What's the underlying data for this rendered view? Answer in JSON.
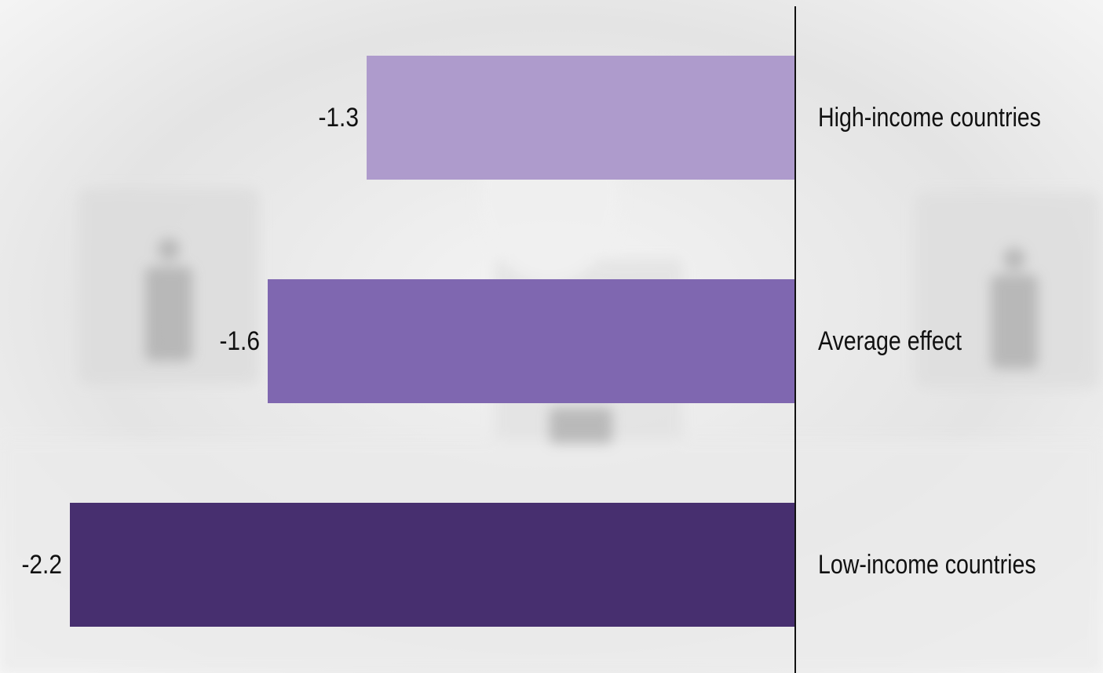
{
  "chart_data": {
    "type": "bar",
    "orientation": "horizontal",
    "categories": [
      "High-income countries",
      "Average effect",
      "Low-income countries"
    ],
    "values": [
      -1.3,
      -1.6,
      -2.2
    ],
    "colors": [
      "#ae9bcc",
      "#7f67b0",
      "#472f6f"
    ],
    "xlim": [
      -2.4,
      0
    ]
  }
}
